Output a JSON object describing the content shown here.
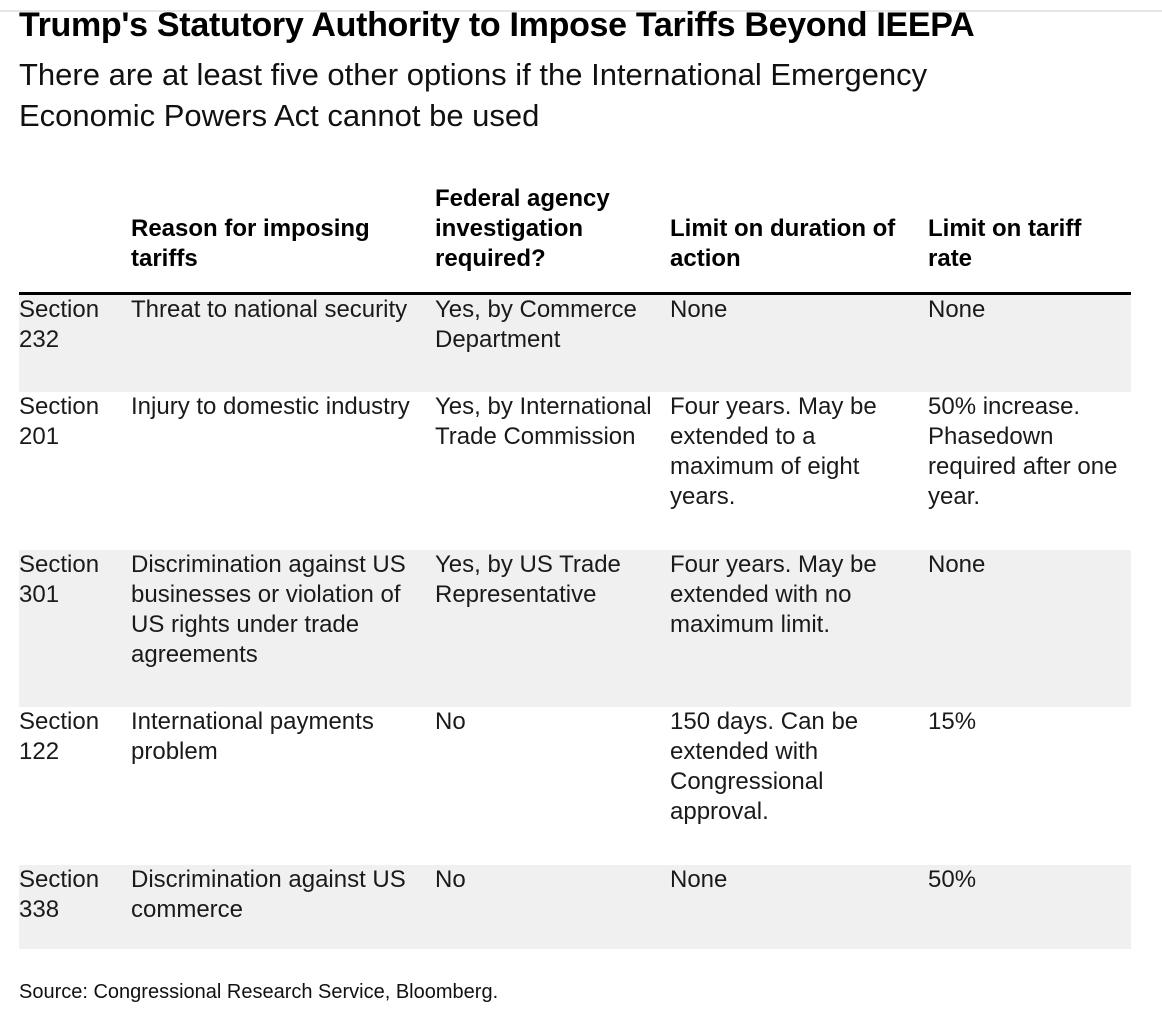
{
  "header": {
    "title": "Trump's Statutory Authority to Impose Tariffs Beyond IEEPA",
    "subtitle": "There are at least five other options if the International Emergency Economic Powers Act cannot be used"
  },
  "chart_data": {
    "type": "table",
    "columns": [
      "",
      "Reason for imposing tariffs",
      "Federal agency investigation required?",
      "Limit on duration of action",
      "Limit on tariff rate"
    ],
    "rows": [
      [
        "Section 232",
        "Threat to national security",
        "Yes, by Commerce Department",
        "None",
        "None"
      ],
      [
        "Section 201",
        "Injury to domestic industry",
        "Yes, by International Trade Commission",
        "Four years. May be extended to a maximum of eight years.",
        "50% increase. Phasedown required after one year."
      ],
      [
        "Section 301",
        "Discrimination against US businesses or violation of US rights under trade agreements",
        "Yes, by US Trade Representative",
        "Four years. May be extended with no maximum limit.",
        "None"
      ],
      [
        "Section 122",
        "International payments problem",
        "No",
        "150 days. Can be extended with Congressional approval.",
        "15%"
      ],
      [
        "Section 338",
        "Discrimination against US commerce",
        "No",
        "None",
        "50%"
      ]
    ],
    "row_shading": "alternating light gray on rows 1, 3, 5",
    "header_rule_color": "#000000",
    "shade_color": "#f0f0f0"
  },
  "footer": {
    "source": "Source: Congressional Research Service, Bloomberg."
  }
}
